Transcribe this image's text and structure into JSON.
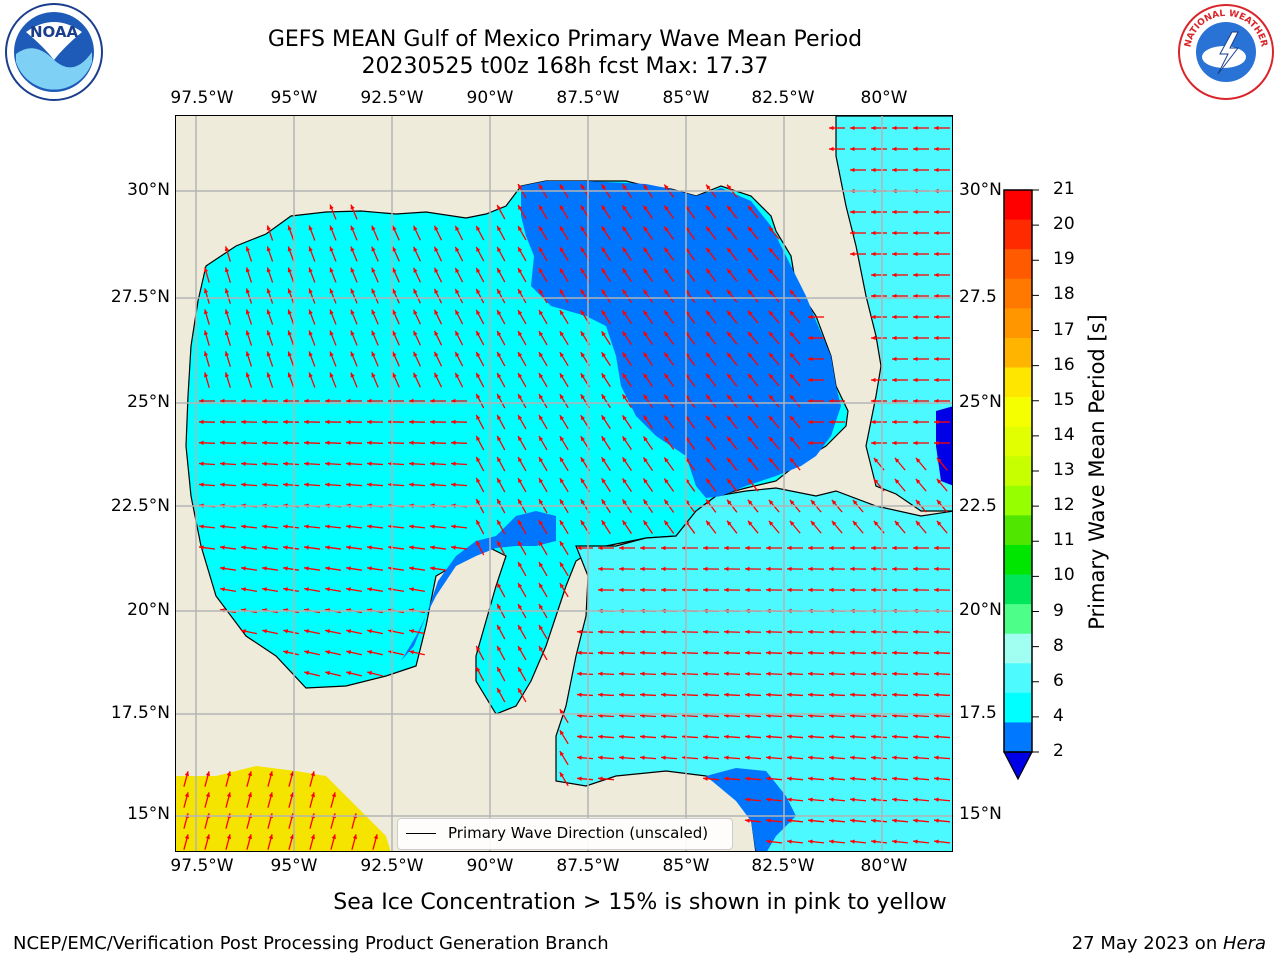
{
  "title": {
    "line1": "GEFS MEAN Gulf of Mexico Primary Wave Mean Period",
    "line2": "20230525 t00z 168h fcst   Max: 17.37"
  },
  "logos": [
    {
      "name": "noaa-logo",
      "text": "NOAA"
    },
    {
      "name": "nws-logo",
      "text": "NATIONAL WEATHER SERVICE"
    }
  ],
  "map": {
    "lon_ticks": [
      "97.5°W",
      "95°W",
      "92.5°W",
      "90°W",
      "87.5°W",
      "85°W",
      "82.5°W",
      "80°W"
    ],
    "lat_ticks_left": [
      "30°N",
      "27.5°N",
      "25°N",
      "22.5°N",
      "20°N",
      "17.5°N",
      "15°N"
    ],
    "lat_ticks_right": [
      "30°N",
      "27.5",
      "25°N",
      "22.5",
      "20°N",
      "17.5",
      "15°N"
    ],
    "colors": {
      "land": "#efebda",
      "grid": "#b4b4b4",
      "coast": "#000000",
      "arrow": "#ff0000",
      "sea_main": "#00ffff",
      "sea_light": "#4cf9ff",
      "sea_dark": "#0076ff",
      "sea_deep": "#0000e6"
    }
  },
  "colorbar": {
    "label": "Primary Wave Mean Period [s]",
    "ticks": [
      "21",
      "20",
      "19",
      "18",
      "17",
      "16",
      "15",
      "14",
      "13",
      "12",
      "11",
      "10",
      "9",
      "8",
      "6",
      "4",
      "2"
    ],
    "band_colors": [
      "#ff0000",
      "#ff2a00",
      "#ff5a00",
      "#ff7800",
      "#ff9600",
      "#ffb400",
      "#ffe600",
      "#f5ff00",
      "#e1ff00",
      "#c8ff00",
      "#96ff00",
      "#50e600",
      "#00e600",
      "#00e65a",
      "#4dff88",
      "#a0fff0",
      "#4dfbff",
      "#00ffff",
      "#0078ff"
    ],
    "extend_color": "#0000e6"
  },
  "legend": {
    "label": "Primary Wave Direction (unscaled)"
  },
  "subtitle": "Sea Ice Concentration > 15% is shown in pink to yellow",
  "footer": {
    "left": "NCEP/EMC/Verification Post Processing Product Generation Branch",
    "right_date": "27 May 2023 on ",
    "right_host": "Hera"
  }
}
